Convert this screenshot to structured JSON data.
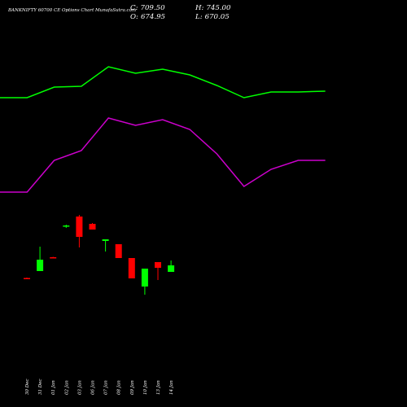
{
  "header": {
    "title": "BANKNIFTY 60700  CE Options  Chart MunafaSutra.com",
    "close_label": "C:",
    "close_value": "709.50",
    "open_label": "O:",
    "open_value": "674.95",
    "high_label": "H:",
    "high_value": "745.00",
    "low_label": "L:",
    "low_value": "670.05"
  },
  "colors": {
    "background": "#000000",
    "up_candle": "#00ff00",
    "down_candle": "#ff0000",
    "upper_line": "#00ff00",
    "lower_line": "#cc00cc",
    "text": "#ffffff"
  },
  "chart_data": {
    "type": "candlestick",
    "title": "BANKNIFTY 60700  CE Options  Chart MunafaSutra.com",
    "x_tick_labels": [
      "30 Dec",
      "31 Dec",
      "01 Jan",
      "02 Jan",
      "03 Jan",
      "06 Jan",
      "07 Jan",
      "08 Jan",
      "09 Jan",
      "10 Jan",
      "13 Jan",
      "14 Jan"
    ],
    "note_y_scale": "relative price units (no y-axis printed); 0 = bottom of price area",
    "candles": [
      {
        "date": "30 Dec",
        "open": 158.5,
        "high": 159.0,
        "low": 158.0,
        "close": 158.0
      },
      {
        "date": "31 Dec",
        "open": 167.0,
        "high": 197.0,
        "low": 167.0,
        "close": 181.0
      },
      {
        "date": "01 Jan",
        "open": 184.0,
        "high": 184.5,
        "low": 183.5,
        "close": 183.5
      },
      {
        "date": "02 Jan",
        "open": 222.0,
        "high": 224.0,
        "low": 220.0,
        "close": 223.0
      },
      {
        "date": "03 Jan",
        "open": 234.0,
        "high": 236.0,
        "low": 196.0,
        "close": 209.0
      },
      {
        "date": "06 Jan",
        "open": 225.0,
        "high": 226.0,
        "low": 218.0,
        "close": 218.0
      },
      {
        "date": "07 Jan",
        "open": 204.0,
        "high": 206.0,
        "low": 191.0,
        "close": 206.0
      },
      {
        "date": "08 Jan",
        "open": 200.0,
        "high": 200.0,
        "low": 183.0,
        "close": 183.0
      },
      {
        "date": "09 Jan",
        "open": 183.0,
        "high": 183.0,
        "low": 158.0,
        "close": 158.0
      },
      {
        "date": "10 Jan",
        "open": 148.0,
        "high": 170.0,
        "low": 138.0,
        "close": 170.0
      },
      {
        "date": "13 Jan",
        "open": 178.0,
        "high": 178.0,
        "low": 156.0,
        "close": 171.0
      },
      {
        "date": "14 Jan",
        "open": 166.0,
        "high": 180.0,
        "low": 166.0,
        "close": 174.0
      }
    ],
    "upper_line": [
      380,
      380,
      393,
      394,
      418,
      410,
      415,
      408,
      395,
      380,
      387,
      387,
      388
    ],
    "lower_line": [
      264,
      264,
      303,
      315,
      355,
      346,
      353,
      341,
      311,
      271,
      292,
      303,
      303
    ]
  }
}
